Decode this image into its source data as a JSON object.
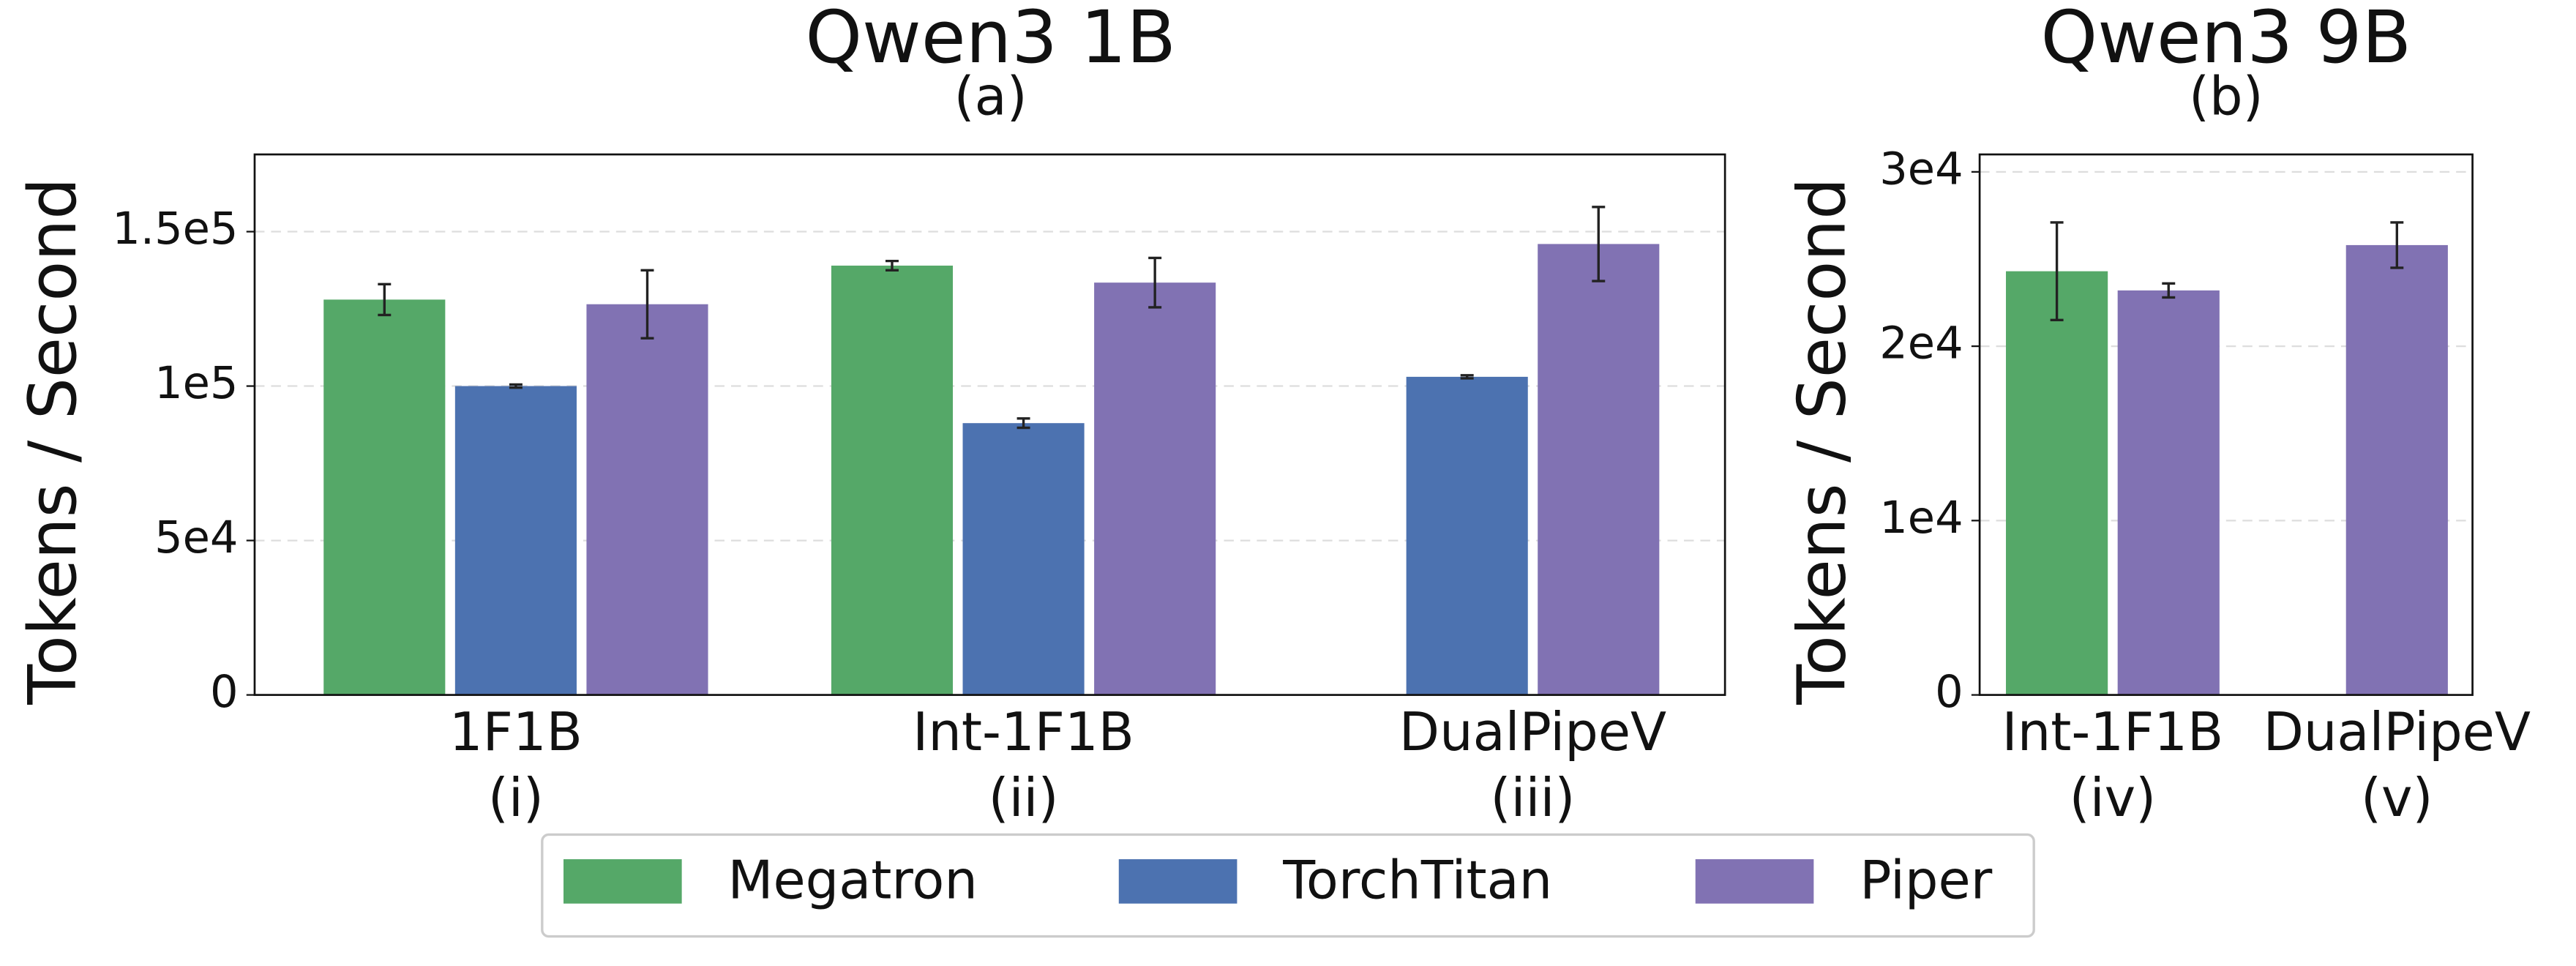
{
  "chart_data": [
    {
      "type": "bar",
      "title": "Qwen3 1B",
      "subtitle": "(a)",
      "ylabel": "Tokens / Second",
      "categories": [
        "1F1B",
        "Int-1F1B",
        "DualPipeV"
      ],
      "category_sublabels": [
        "(i)",
        "(ii)",
        "(iii)"
      ],
      "series": [
        {
          "name": "Megatron",
          "color": "#55a868",
          "values": [
            128000,
            139000,
            null
          ],
          "errors": [
            5000,
            1500,
            null
          ]
        },
        {
          "name": "TorchTitan",
          "color": "#4c72b0",
          "values": [
            100000,
            88000,
            103000
          ],
          "errors": [
            500,
            1500,
            500
          ]
        },
        {
          "name": "Piper",
          "color": "#8172b3",
          "values": [
            126500,
            133500,
            146000
          ],
          "errors": [
            11000,
            8000,
            12000
          ]
        }
      ],
      "ylim": [
        0,
        175000
      ],
      "yticks": [
        0,
        {
          "value": 50000,
          "label": "5e4"
        },
        {
          "value": 100000,
          "label": "1e5"
        },
        {
          "value": 150000,
          "label": "1.5e5"
        }
      ],
      "grid": true
    },
    {
      "type": "bar",
      "title": "Qwen3 9B",
      "subtitle": "(b)",
      "ylabel": "Tokens / Second",
      "categories": [
        "Int-1F1B",
        "DualPipeV"
      ],
      "category_sublabels": [
        "(iv)",
        "(v)"
      ],
      "series": [
        {
          "name": "Megatron",
          "color": "#55a868",
          "values": [
            24300,
            null
          ],
          "errors": [
            2800,
            null
          ]
        },
        {
          "name": "Piper",
          "color": "#8172b3",
          "values": [
            23200,
            25800
          ],
          "errors": [
            400,
            1300
          ]
        }
      ],
      "ylim": [
        0,
        31000
      ],
      "yticks": [
        0,
        {
          "value": 10000,
          "label": "1e4"
        },
        {
          "value": 20000,
          "label": "2e4"
        },
        {
          "value": 30000,
          "label": "3e4"
        }
      ],
      "grid": true
    }
  ]
}
